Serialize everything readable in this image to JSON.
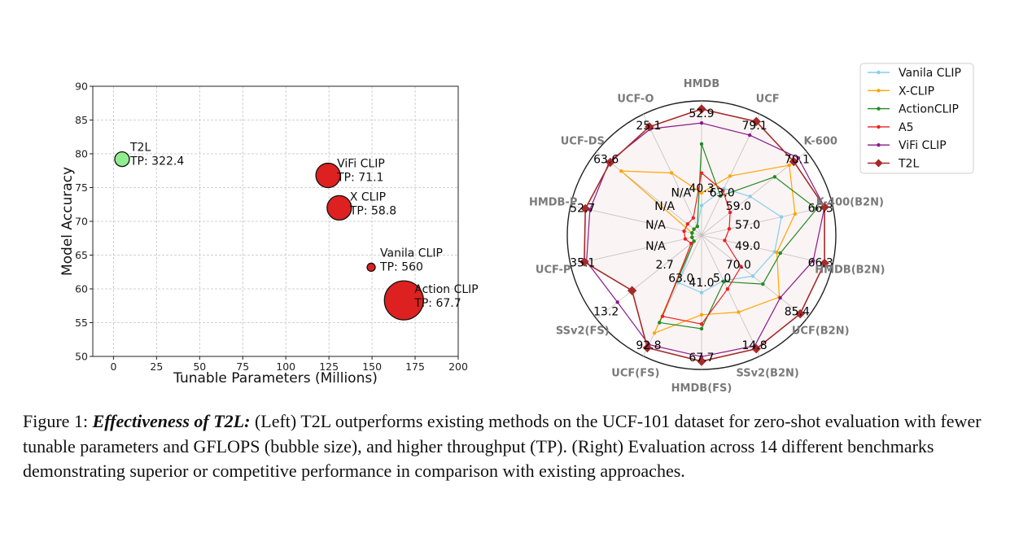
{
  "chart_data": [
    {
      "type": "scatter",
      "xlabel": "Tunable Parameters (Millions)",
      "ylabel": "Model Accuracy",
      "xlim": [
        -12,
        200
      ],
      "ylim": [
        50,
        90
      ],
      "xticks": [
        0,
        25,
        50,
        75,
        100,
        125,
        150,
        175,
        200
      ],
      "yticks": [
        50,
        55,
        60,
        65,
        70,
        75,
        80,
        85,
        90
      ],
      "grid": true,
      "points": [
        {
          "name": "T2L",
          "tp": "TP: 322.4",
          "x": 5,
          "y": 79.2,
          "size": 9,
          "color": "#90ee90"
        },
        {
          "name": "ViFi CLIP",
          "tp": "TP: 71.1",
          "x": 124.5,
          "y": 76.8,
          "size": 15,
          "color": "#dd2020"
        },
        {
          "name": "X CLIP",
          "tp": "TP: 58.8",
          "x": 131,
          "y": 72.0,
          "size": 15,
          "color": "#dd2020"
        },
        {
          "name": "Vanila CLIP",
          "tp": "TP: 560",
          "x": 149.5,
          "y": 63.2,
          "size": 5,
          "color": "#dd2020"
        },
        {
          "name": "Action CLIP",
          "tp": "TP: 67.7",
          "x": 168.5,
          "y": 58.3,
          "size": 24,
          "color": "#dd2020"
        }
      ]
    },
    {
      "type": "radar",
      "categories": [
        "HMDB",
        "UCF",
        "K-600",
        "K-400(B2N)",
        "HMDB(B2N)",
        "UCF(B2N)",
        "SSv2(B2N)",
        "HMDB(FS)",
        "UCF(FS)",
        "SSv2(FS)",
        "UCF-P",
        "HMDB-P",
        "UCF-DS",
        "UCF-O"
      ],
      "outer_labels": [
        "52.9",
        "79.1",
        "70.1",
        "66.3",
        "66.3",
        "85.4",
        "14.8",
        "67.7",
        "92.8",
        "13.2",
        "35.1",
        "52.7",
        "63.6",
        "25.1"
      ],
      "inner_labels": [
        "40.3",
        "63.0",
        "59.0",
        "57.0",
        "49.0",
        "70.0",
        "5.0",
        "41.0",
        "63.0",
        "2.7",
        "N/A",
        "N/A",
        "N/A",
        "N/A"
      ],
      "legend_position": "top-right",
      "series": [
        {
          "name": "Vanila CLIP",
          "color": "#87ceeb",
          "marker": "dot",
          "values": [
            0.17,
            0.36,
            0.45,
            0.62,
            0.56,
            0.48,
            0.35,
            0.41,
            0.37,
            0.0,
            0.0,
            0.0,
            0.0,
            0.0
          ]
        },
        {
          "name": "X-CLIP",
          "color": "#ffa500",
          "marker": "dot",
          "values": [
            0.28,
            0.48,
            0.88,
            0.74,
            0.58,
            0.77,
            0.65,
            0.6,
            0.85,
            0.0,
            0.0,
            0.0,
            0.8,
            0.51
          ]
        },
        {
          "name": "ActionCLIP",
          "color": "#228b22",
          "marker": "dot",
          "values": [
            0.7,
            0.29,
            0.72,
            0.93,
            0.61,
            0.59,
            0.36,
            0.72,
            0.75,
            0.0,
            0.0,
            0.0,
            0.0,
            0.0
          ]
        },
        {
          "name": "A5",
          "color": "#ee2020",
          "marker": "dot",
          "values": [
            0.45,
            0.34,
            0.23,
            0.16,
            0.12,
            0.35,
            0.43,
            0.68,
            0.69,
            0.03,
            0.06,
            0.07,
            0.07,
            0.08
          ]
        },
        {
          "name": "ViFi CLIP",
          "color": "#8b1a8b",
          "marker": "dot",
          "values": [
            0.88,
            0.87,
            0.98,
            1.0,
            0.9,
            0.78,
            0.97,
            0.96,
            0.96,
            0.84,
            0.93,
            0.9,
            0.93,
            0.93
          ]
        },
        {
          "name": "T2L",
          "color": "#a52a2a",
          "marker": "diamond",
          "values": [
            1.0,
            1.0,
            0.93,
            1.0,
            1.0,
            1.0,
            1.0,
            1.0,
            0.99,
            0.68,
            0.95,
            0.94,
            0.92,
            0.95
          ]
        }
      ]
    }
  ],
  "caption": {
    "prefix": "Figure 1:",
    "lead": "Effectiveness of T2L:",
    "text": " (Left) T2L outperforms existing methods on the UCF-101 dataset for zero-shot evaluation with fewer tunable parameters and GFLOPS (bubble size), and higher throughput (TP). (Right) Evaluation across 14 different benchmarks demonstrating superior or competitive performance in comparison with existing approaches."
  }
}
